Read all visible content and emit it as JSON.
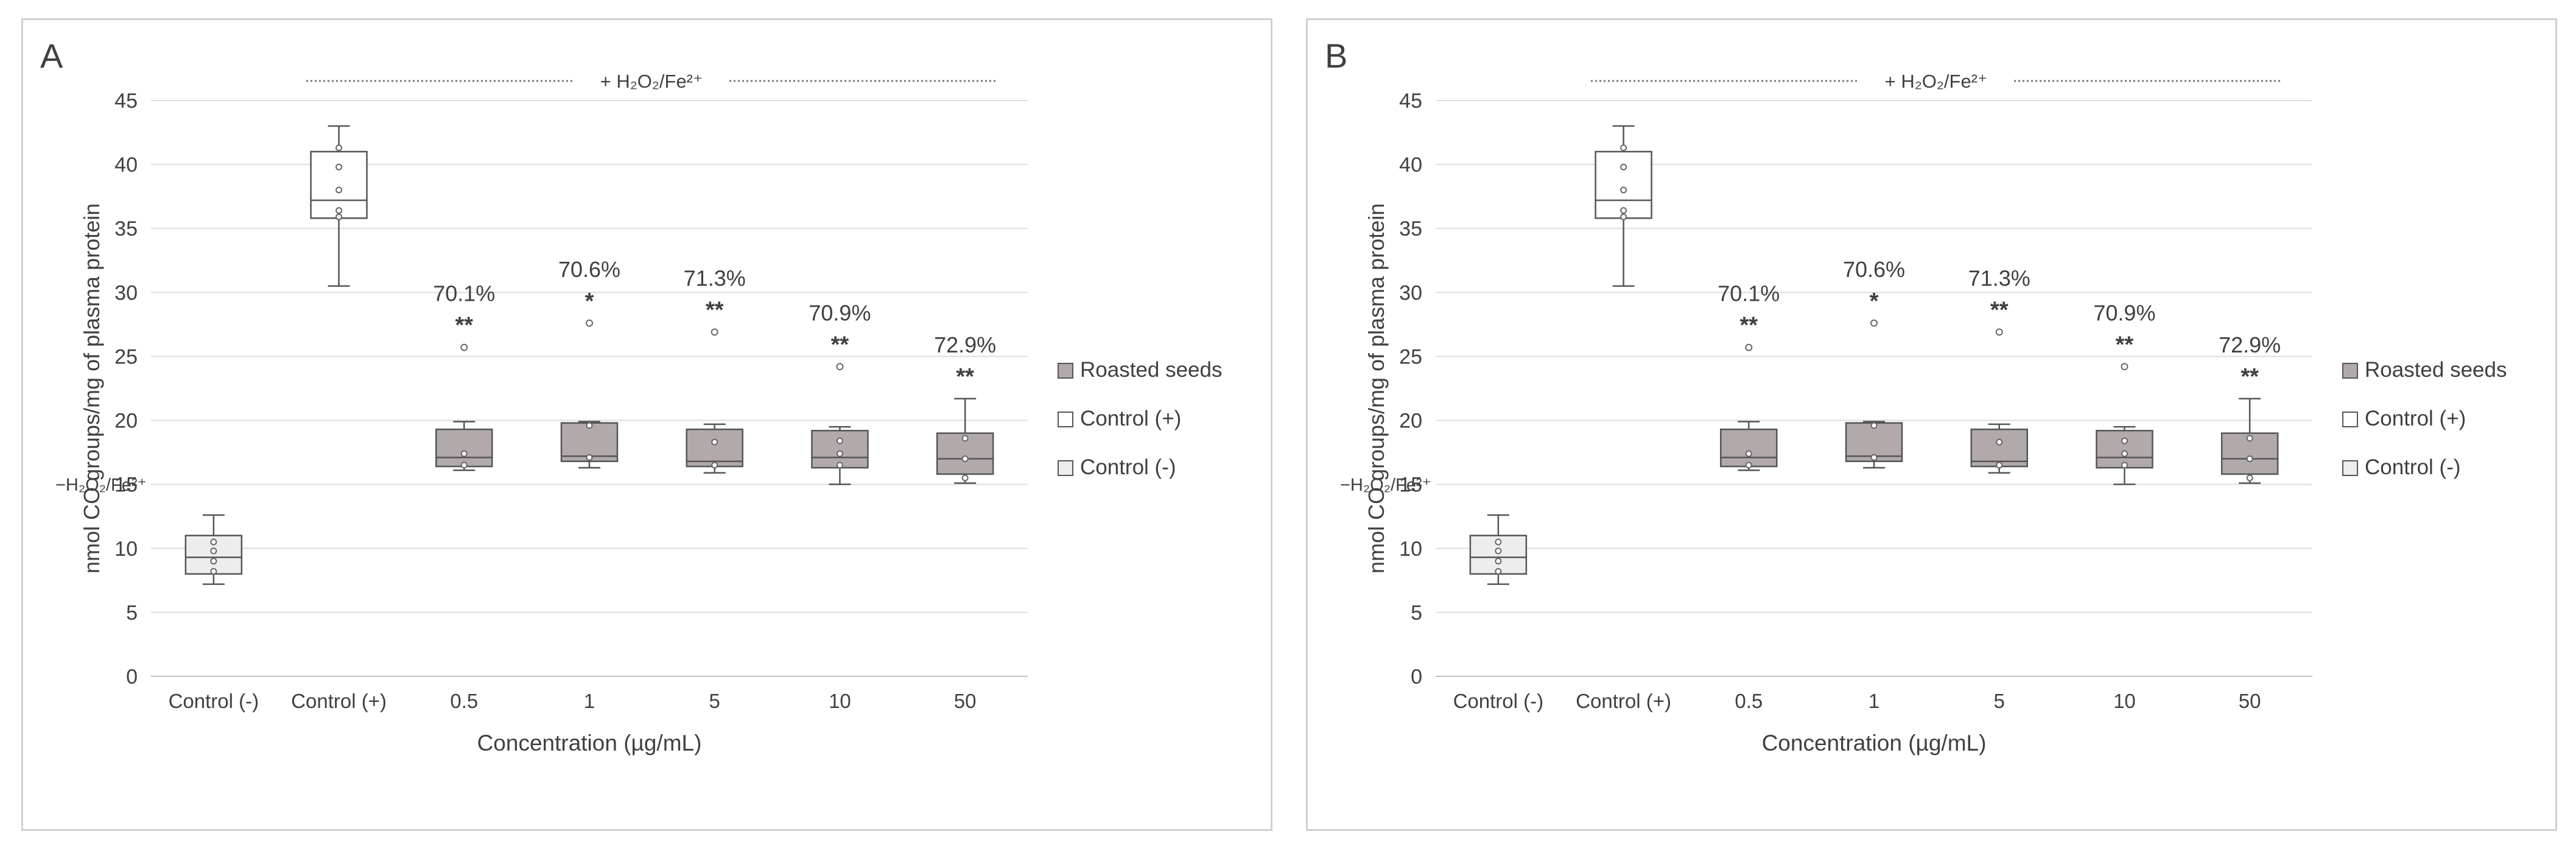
{
  "chart_data": [
    {
      "panel_label": "A",
      "type": "box",
      "ylabel": "nmol CO groups/mg of plasma protein",
      "xlabel": "Concentration (µg/mL)",
      "ylim": [
        0,
        45
      ],
      "ytick_labels": [
        "0",
        "5",
        "10",
        "15",
        "20",
        "25",
        "30",
        "35",
        "40",
        "45"
      ],
      "grid": true,
      "treatment_label": "+ H₂O₂/Fe²⁺",
      "neg_treatment_label": "−H₂O₂/Fe²⁺",
      "legend": [
        "Roasted seeds",
        "Control (+)",
        "Control (-)"
      ],
      "legend_position": "right",
      "categories": [
        "Control (-)",
        "Control (+)",
        "0.5",
        "1",
        "5",
        "10",
        "50"
      ],
      "boxes": [
        {
          "category": "Control (-)",
          "series": "Control (-)",
          "min": 7.2,
          "q1": 8.0,
          "median": 9.3,
          "q3": 11.0,
          "max": 12.6,
          "points": [
            8.2,
            9.0,
            9.8,
            10.5
          ],
          "outliers": [],
          "significance": "",
          "percent": ""
        },
        {
          "category": "Control (+)",
          "series": "Control (+)",
          "min": 30.5,
          "q1": 35.8,
          "median": 37.2,
          "q3": 41.0,
          "max": 43.0,
          "points": [
            35.9,
            36.4,
            38.0,
            39.8,
            41.3
          ],
          "outliers": [],
          "significance": "",
          "percent": ""
        },
        {
          "category": "0.5",
          "series": "Roasted seeds",
          "min": 16.1,
          "q1": 16.4,
          "median": 17.1,
          "q3": 19.3,
          "max": 19.9,
          "points": [
            16.5,
            17.4
          ],
          "outliers": [
            25.7
          ],
          "significance": "**",
          "percent": "70.1%"
        },
        {
          "category": "1",
          "series": "Roasted seeds",
          "min": 16.3,
          "q1": 16.8,
          "median": 17.2,
          "q3": 19.8,
          "max": 19.9,
          "points": [
            17.1,
            19.6
          ],
          "outliers": [
            27.6
          ],
          "significance": "*",
          "percent": "70.6%"
        },
        {
          "category": "5",
          "series": "Roasted seeds",
          "min": 15.9,
          "q1": 16.4,
          "median": 16.8,
          "q3": 19.3,
          "max": 19.7,
          "points": [
            16.5,
            18.3
          ],
          "outliers": [
            26.9
          ],
          "significance": "**",
          "percent": "71.3%"
        },
        {
          "category": "10",
          "series": "Roasted seeds",
          "min": 15.0,
          "q1": 16.3,
          "median": 17.1,
          "q3": 19.2,
          "max": 19.5,
          "points": [
            16.5,
            17.4,
            18.4
          ],
          "outliers": [
            24.2
          ],
          "significance": "**",
          "percent": "70.9%"
        },
        {
          "category": "50",
          "series": "Roasted seeds",
          "min": 15.1,
          "q1": 15.8,
          "median": 17.0,
          "q3": 19.0,
          "max": 21.7,
          "points": [
            15.5,
            17.0,
            18.6
          ],
          "outliers": [],
          "significance": "**",
          "percent": "72.9%"
        }
      ],
      "colors": {
        "Roasted seeds": "#b2aaaa",
        "Control (+)": "#ffffff",
        "Control (-)": "#ededed",
        "outline": "#555555",
        "grid": "#dddddd",
        "text": "#404040"
      }
    },
    {
      "panel_label": "B",
      "type": "box",
      "ylabel": "nmol CO groups/mg of plasma protein",
      "xlabel": "Concentration (µg/mL)",
      "ylim": [
        0,
        45
      ],
      "ytick_labels": [
        "0",
        "5",
        "10",
        "15",
        "20",
        "25",
        "30",
        "35",
        "40",
        "45"
      ],
      "grid": true,
      "treatment_label": "+ H₂O₂/Fe²⁺",
      "neg_treatment_label": "−H₂O₂/Fe²⁺",
      "legend": [
        "Roasted seeds",
        "Control (+)",
        "Control (-)"
      ],
      "legend_position": "right",
      "categories": [
        "Control (-)",
        "Control (+)",
        "0.5",
        "1",
        "5",
        "10",
        "50"
      ],
      "boxes": [
        {
          "category": "Control (-)",
          "series": "Control (-)",
          "min": 7.2,
          "q1": 8.0,
          "median": 9.3,
          "q3": 11.0,
          "max": 12.6,
          "points": [
            8.2,
            9.0,
            9.8,
            10.5
          ],
          "outliers": [],
          "significance": "",
          "percent": ""
        },
        {
          "category": "Control (+)",
          "series": "Control (+)",
          "min": 30.5,
          "q1": 35.8,
          "median": 37.2,
          "q3": 41.0,
          "max": 43.0,
          "points": [
            35.9,
            36.4,
            38.0,
            39.8,
            41.3
          ],
          "outliers": [],
          "significance": "",
          "percent": ""
        },
        {
          "category": "0.5",
          "series": "Roasted seeds",
          "min": 16.1,
          "q1": 16.4,
          "median": 17.1,
          "q3": 19.3,
          "max": 19.9,
          "points": [
            16.5,
            17.4
          ],
          "outliers": [
            25.7
          ],
          "significance": "**",
          "percent": "70.1%"
        },
        {
          "category": "1",
          "series": "Roasted seeds",
          "min": 16.3,
          "q1": 16.8,
          "median": 17.2,
          "q3": 19.8,
          "max": 19.9,
          "points": [
            17.1,
            19.6
          ],
          "outliers": [
            27.6
          ],
          "significance": "*",
          "percent": "70.6%"
        },
        {
          "category": "5",
          "series": "Roasted seeds",
          "min": 15.9,
          "q1": 16.4,
          "median": 16.8,
          "q3": 19.3,
          "max": 19.7,
          "points": [
            16.5,
            18.3
          ],
          "outliers": [
            26.9
          ],
          "significance": "**",
          "percent": "71.3%"
        },
        {
          "category": "10",
          "series": "Roasted seeds",
          "min": 15.0,
          "q1": 16.3,
          "median": 17.1,
          "q3": 19.2,
          "max": 19.5,
          "points": [
            16.5,
            17.4,
            18.4
          ],
          "outliers": [
            24.2
          ],
          "significance": "**",
          "percent": "70.9%"
        },
        {
          "category": "50",
          "series": "Roasted seeds",
          "min": 15.1,
          "q1": 15.8,
          "median": 17.0,
          "q3": 19.0,
          "max": 21.7,
          "points": [
            15.5,
            17.0,
            18.6
          ],
          "outliers": [],
          "significance": "**",
          "percent": "72.9%"
        }
      ],
      "colors": {
        "Roasted seeds": "#b2aaaa",
        "Control (+)": "#ffffff",
        "Control (-)": "#ededed",
        "outline": "#555555",
        "grid": "#dddddd",
        "text": "#404040"
      }
    }
  ]
}
